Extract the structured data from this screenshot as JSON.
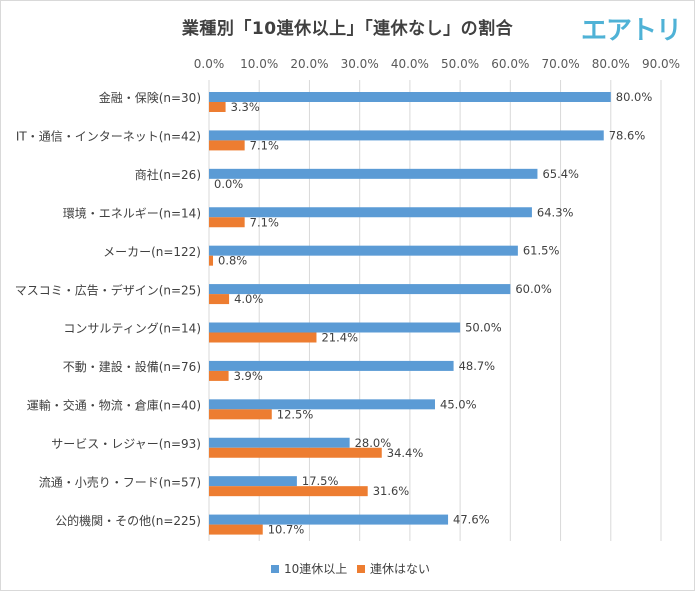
{
  "chart_data": {
    "type": "bar",
    "orientation": "horizontal",
    "title": "業種別「10連休以上」「連休なし」の割合",
    "categories": [
      "金融・保険(n=30)",
      "IT・通信・インターネット(n=42)",
      "商社(n=26)",
      "環境・エネルギー(n=14)",
      "メーカー(n=122)",
      "マスコミ・広告・デザイン(n=25)",
      "コンサルティング(n=14)",
      "不動・建設・設備(n=76)",
      "運輸・交通・物流・倉庫(n=40)",
      "サービス・レジャー(n=93)",
      "流通・小売り・フード(n=57)",
      "公的機関・その他(n=225)"
    ],
    "series": [
      {
        "name": "10連休以上",
        "color": "#5b9bd5",
        "values": [
          80.0,
          78.6,
          65.4,
          64.3,
          61.5,
          60.0,
          50.0,
          48.7,
          45.0,
          28.0,
          17.5,
          47.6
        ],
        "labels": [
          "80.0%",
          "78.6%",
          "65.4%",
          "64.3%",
          "61.5%",
          "60.0%",
          "50.0%",
          "48.7%",
          "45.0%",
          "28.0%",
          "17.5%",
          "47.6%"
        ]
      },
      {
        "name": "連休はない",
        "color": "#ed7d31",
        "values": [
          3.3,
          7.1,
          0.0,
          7.1,
          0.8,
          4.0,
          21.4,
          3.9,
          12.5,
          34.4,
          31.6,
          10.7
        ],
        "labels": [
          "3.3%",
          "7.1%",
          "0.0%",
          "7.1%",
          "0.8%",
          "4.0%",
          "21.4%",
          "3.9%",
          "12.5%",
          "34.4%",
          "31.6%",
          "10.7%"
        ]
      }
    ],
    "x_ticks": [
      "0.0%",
      "10.0%",
      "20.0%",
      "30.0%",
      "40.0%",
      "50.0%",
      "60.0%",
      "70.0%",
      "80.0%",
      "90.0%"
    ],
    "xlim": [
      0,
      90
    ],
    "x_axis_position": "top",
    "grid": "vertical",
    "legend_position": "bottom"
  },
  "branding": {
    "logo_text": "エアトリ",
    "logo_color": "#4fb2d6"
  }
}
